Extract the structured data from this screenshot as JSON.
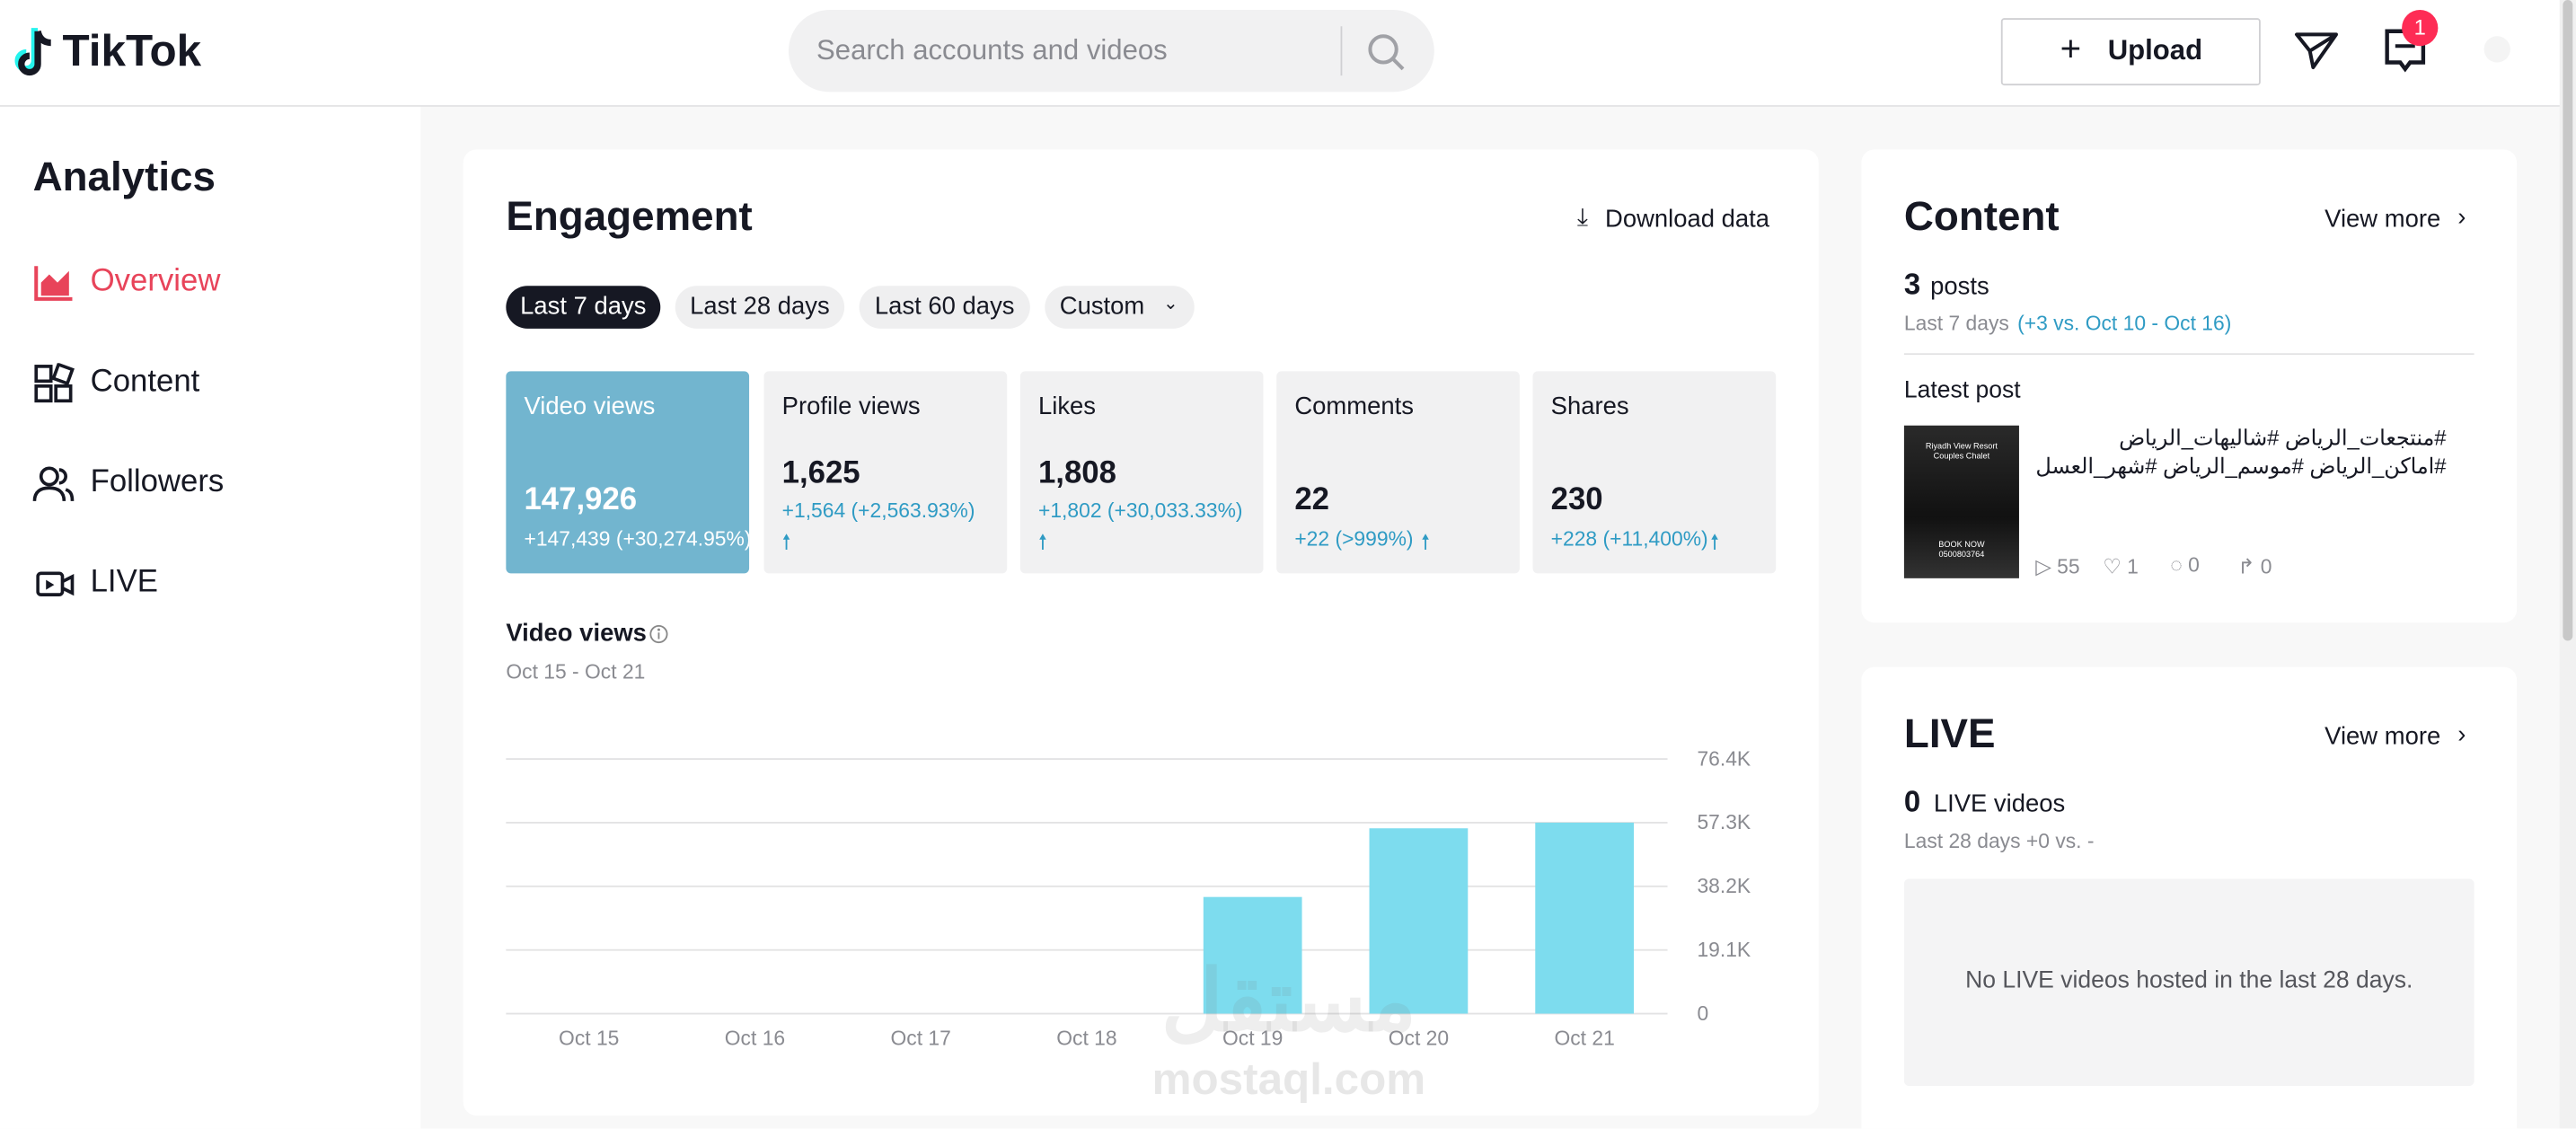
{
  "header": {
    "logo": "TikTok",
    "search_placeholder": "Search accounts and videos",
    "upload": "Upload",
    "inbox_badge": "1"
  },
  "sidebar": {
    "title": "Analytics",
    "menu": [
      "Overview",
      "Content",
      "Followers",
      "LIVE"
    ]
  },
  "engagement": {
    "title": "Engagement",
    "download": "Download data",
    "ranges": [
      "Last 7 days",
      "Last 28 days",
      "Last 60 days",
      "Custom"
    ],
    "metrics": [
      {
        "label": "Video views",
        "value": "147,926",
        "change": "+147,439 (+30,274.95%)"
      },
      {
        "label": "Profile views",
        "value": "1,625",
        "change": "+1,564 (+2,563.93%)"
      },
      {
        "label": "Likes",
        "value": "1,808",
        "change": "+1,802 (+30,033.33%)"
      },
      {
        "label": "Comments",
        "value": "22",
        "change": "+22 (>999%)"
      },
      {
        "label": "Shares",
        "value": "230",
        "change": "+228 (+11,400%)"
      }
    ],
    "chart_title": "Video views",
    "chart_range": "Oct 15 - Oct 21",
    "chart_data": {
      "type": "bar",
      "categories": [
        "Oct 15",
        "Oct 16",
        "Oct 17",
        "Oct 18",
        "Oct 19",
        "Oct 20",
        "Oct 21"
      ],
      "values": [
        0,
        0,
        0,
        0,
        35000,
        55600,
        57300
      ],
      "color": "#7ddcee",
      "ylim": [
        0,
        76400
      ],
      "yticks": [
        0,
        {
          "value": 19100,
          "label": "19.1K"
        },
        {
          "value": 38200,
          "label": "38.2K"
        },
        {
          "value": 57300,
          "label": "57.3K"
        },
        {
          "value": 76400,
          "label": "76.4K"
        }
      ],
      "grid": true
    }
  },
  "content": {
    "title": "Content",
    "view_more": "View more",
    "posts_count": "3",
    "posts_label": "posts",
    "period": "Last 7 days",
    "comparison": "(+3 vs. Oct 10 - Oct 16)",
    "latest_label": "Latest post",
    "thumbnail": {
      "line1": "Riyadh View Resort",
      "line2": "Couples Chalet",
      "line3": "BOOK NOW",
      "line4": "0500803764"
    },
    "caption": "#منتجعات_الرياض #شاليهات_الرياض #اماكن_الرياض #موسم_الرياض #شهر_العسل",
    "stats": {
      "views": "55",
      "likes": "1",
      "comments": "0",
      "shares": "0"
    }
  },
  "live": {
    "title": "LIVE",
    "view_more": "View more",
    "count": "0",
    "count_label": "LIVE videos",
    "period": "Last 28 days +0 vs. -",
    "empty": "No LIVE videos hosted in the last 28 days."
  },
  "watermark": {
    "arabic": "مستقل",
    "latin": "mostaql.com"
  }
}
